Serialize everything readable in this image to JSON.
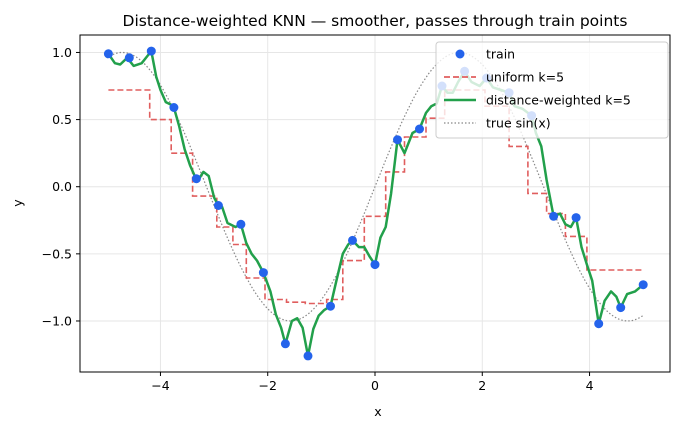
{
  "chart_data": {
    "type": "line",
    "title": "Distance-weighted KNN — smoother, passes through train points",
    "xlabel": "x",
    "ylabel": "y",
    "xlim": [
      -5.5,
      5.5
    ],
    "ylim": [
      -1.38,
      1.13
    ],
    "xticks": [
      -4,
      -2,
      0,
      2,
      4
    ],
    "yticks": [
      -1.0,
      -0.5,
      0.0,
      0.5,
      1.0
    ],
    "xtick_labels": [
      "−4",
      "−2",
      "0",
      "2",
      "4"
    ],
    "ytick_labels": [
      "−1.0",
      "−0.5",
      "0.0",
      "0.5",
      "1.0"
    ],
    "grid": true,
    "legend_position": "top-right",
    "colors": {
      "train": "#2463eb",
      "uniform": "#e05e5e",
      "weighted": "#22a04b",
      "true": "#888888"
    },
    "train": {
      "name": "train",
      "x": [
        -4.97,
        -4.58,
        -4.17,
        -3.75,
        -3.33,
        -2.92,
        -2.5,
        -2.08,
        -1.67,
        -1.25,
        -0.83,
        -0.42,
        0.0,
        0.42,
        0.83,
        1.25,
        1.67,
        2.08,
        2.5,
        2.92,
        3.33,
        3.75,
        4.17,
        4.58,
        5.0
      ],
      "y": [
        0.99,
        0.96,
        1.01,
        0.59,
        0.06,
        -0.14,
        -0.28,
        -0.64,
        -1.17,
        -1.26,
        -0.89,
        -0.4,
        -0.58,
        0.35,
        0.43,
        0.75,
        0.86,
        0.81,
        0.7,
        0.53,
        -0.22,
        -0.23,
        -1.02,
        -0.9,
        -0.73
      ]
    },
    "uniform": {
      "name": "uniform k=5",
      "x": [
        -4.97,
        -4.2,
        -4.2,
        -3.8,
        -3.8,
        -3.4,
        -3.4,
        -2.95,
        -2.95,
        -2.65,
        -2.65,
        -2.4,
        -2.4,
        -2.05,
        -2.05,
        -1.65,
        -1.65,
        -1.3,
        -1.3,
        -0.9,
        -0.9,
        -0.6,
        -0.6,
        -0.2,
        -0.2,
        0.2,
        0.2,
        0.55,
        0.55,
        0.95,
        0.95,
        1.3,
        1.3,
        1.7,
        1.7,
        2.05,
        2.05,
        2.5,
        2.5,
        2.85,
        2.85,
        3.2,
        3.2,
        3.55,
        3.55,
        3.95,
        3.95,
        5.0
      ],
      "y": [
        0.72,
        0.72,
        0.5,
        0.5,
        0.25,
        0.25,
        -0.07,
        -0.07,
        -0.3,
        -0.3,
        -0.43,
        -0.43,
        -0.68,
        -0.68,
        -0.84,
        -0.84,
        -0.86,
        -0.86,
        -0.87,
        -0.87,
        -0.84,
        -0.84,
        -0.55,
        -0.55,
        -0.22,
        -0.22,
        0.11,
        0.11,
        0.37,
        0.37,
        0.51,
        0.51,
        0.72,
        0.72,
        0.72,
        0.72,
        0.6,
        0.6,
        0.3,
        0.3,
        -0.05,
        -0.05,
        -0.2,
        -0.2,
        -0.37,
        -0.37,
        -0.62,
        -0.62
      ]
    },
    "weighted": {
      "name": "distance-weighted k=5",
      "x": [
        -4.97,
        -4.85,
        -4.75,
        -4.62,
        -4.5,
        -4.35,
        -4.25,
        -4.17,
        -4.08,
        -4.0,
        -3.9,
        -3.8,
        -3.75,
        -3.65,
        -3.55,
        -3.45,
        -3.35,
        -3.28,
        -3.2,
        -3.1,
        -3.0,
        -2.92,
        -2.85,
        -2.75,
        -2.6,
        -2.5,
        -2.4,
        -2.3,
        -2.2,
        -2.08,
        -1.95,
        -1.85,
        -1.75,
        -1.67,
        -1.55,
        -1.45,
        -1.35,
        -1.25,
        -1.15,
        -1.05,
        -0.95,
        -0.83,
        -0.72,
        -0.6,
        -0.5,
        -0.42,
        -0.3,
        -0.2,
        -0.1,
        0.0,
        0.1,
        0.2,
        0.3,
        0.42,
        0.55,
        0.7,
        0.83,
        0.95,
        1.05,
        1.15,
        1.25,
        1.35,
        1.45,
        1.55,
        1.67,
        1.8,
        1.95,
        2.08,
        2.2,
        2.35,
        2.5,
        2.6,
        2.75,
        2.92,
        3.0,
        3.1,
        3.2,
        3.33,
        3.45,
        3.55,
        3.65,
        3.75,
        3.85,
        3.95,
        4.05,
        4.17,
        4.28,
        4.4,
        4.5,
        4.58,
        4.7,
        4.85,
        5.0
      ],
      "y": [
        0.99,
        0.92,
        0.91,
        0.96,
        0.9,
        0.92,
        0.97,
        1.01,
        0.82,
        0.72,
        0.63,
        0.61,
        0.59,
        0.45,
        0.28,
        0.16,
        0.07,
        0.06,
        0.11,
        0.08,
        -0.08,
        -0.14,
        -0.15,
        -0.27,
        -0.3,
        -0.28,
        -0.42,
        -0.5,
        -0.55,
        -0.64,
        -0.78,
        -0.95,
        -1.05,
        -1.17,
        -1.0,
        -0.98,
        -1.05,
        -1.26,
        -1.06,
        -0.96,
        -0.92,
        -0.89,
        -0.7,
        -0.5,
        -0.43,
        -0.4,
        -0.45,
        -0.45,
        -0.52,
        -0.58,
        -0.38,
        -0.3,
        -0.05,
        0.35,
        0.25,
        0.4,
        0.43,
        0.55,
        0.6,
        0.62,
        0.75,
        0.7,
        0.7,
        0.78,
        0.86,
        0.78,
        0.75,
        0.81,
        0.74,
        0.72,
        0.7,
        0.6,
        0.58,
        0.53,
        0.4,
        0.3,
        0.05,
        -0.22,
        -0.2,
        -0.28,
        -0.3,
        -0.23,
        -0.45,
        -0.58,
        -0.7,
        -1.02,
        -0.85,
        -0.78,
        -0.82,
        -0.9,
        -0.8,
        -0.78,
        -0.73
      ]
    },
    "true_fn": {
      "name": "true sin(x)",
      "x_range": [
        -5.0,
        5.0
      ],
      "function": "sin"
    }
  }
}
